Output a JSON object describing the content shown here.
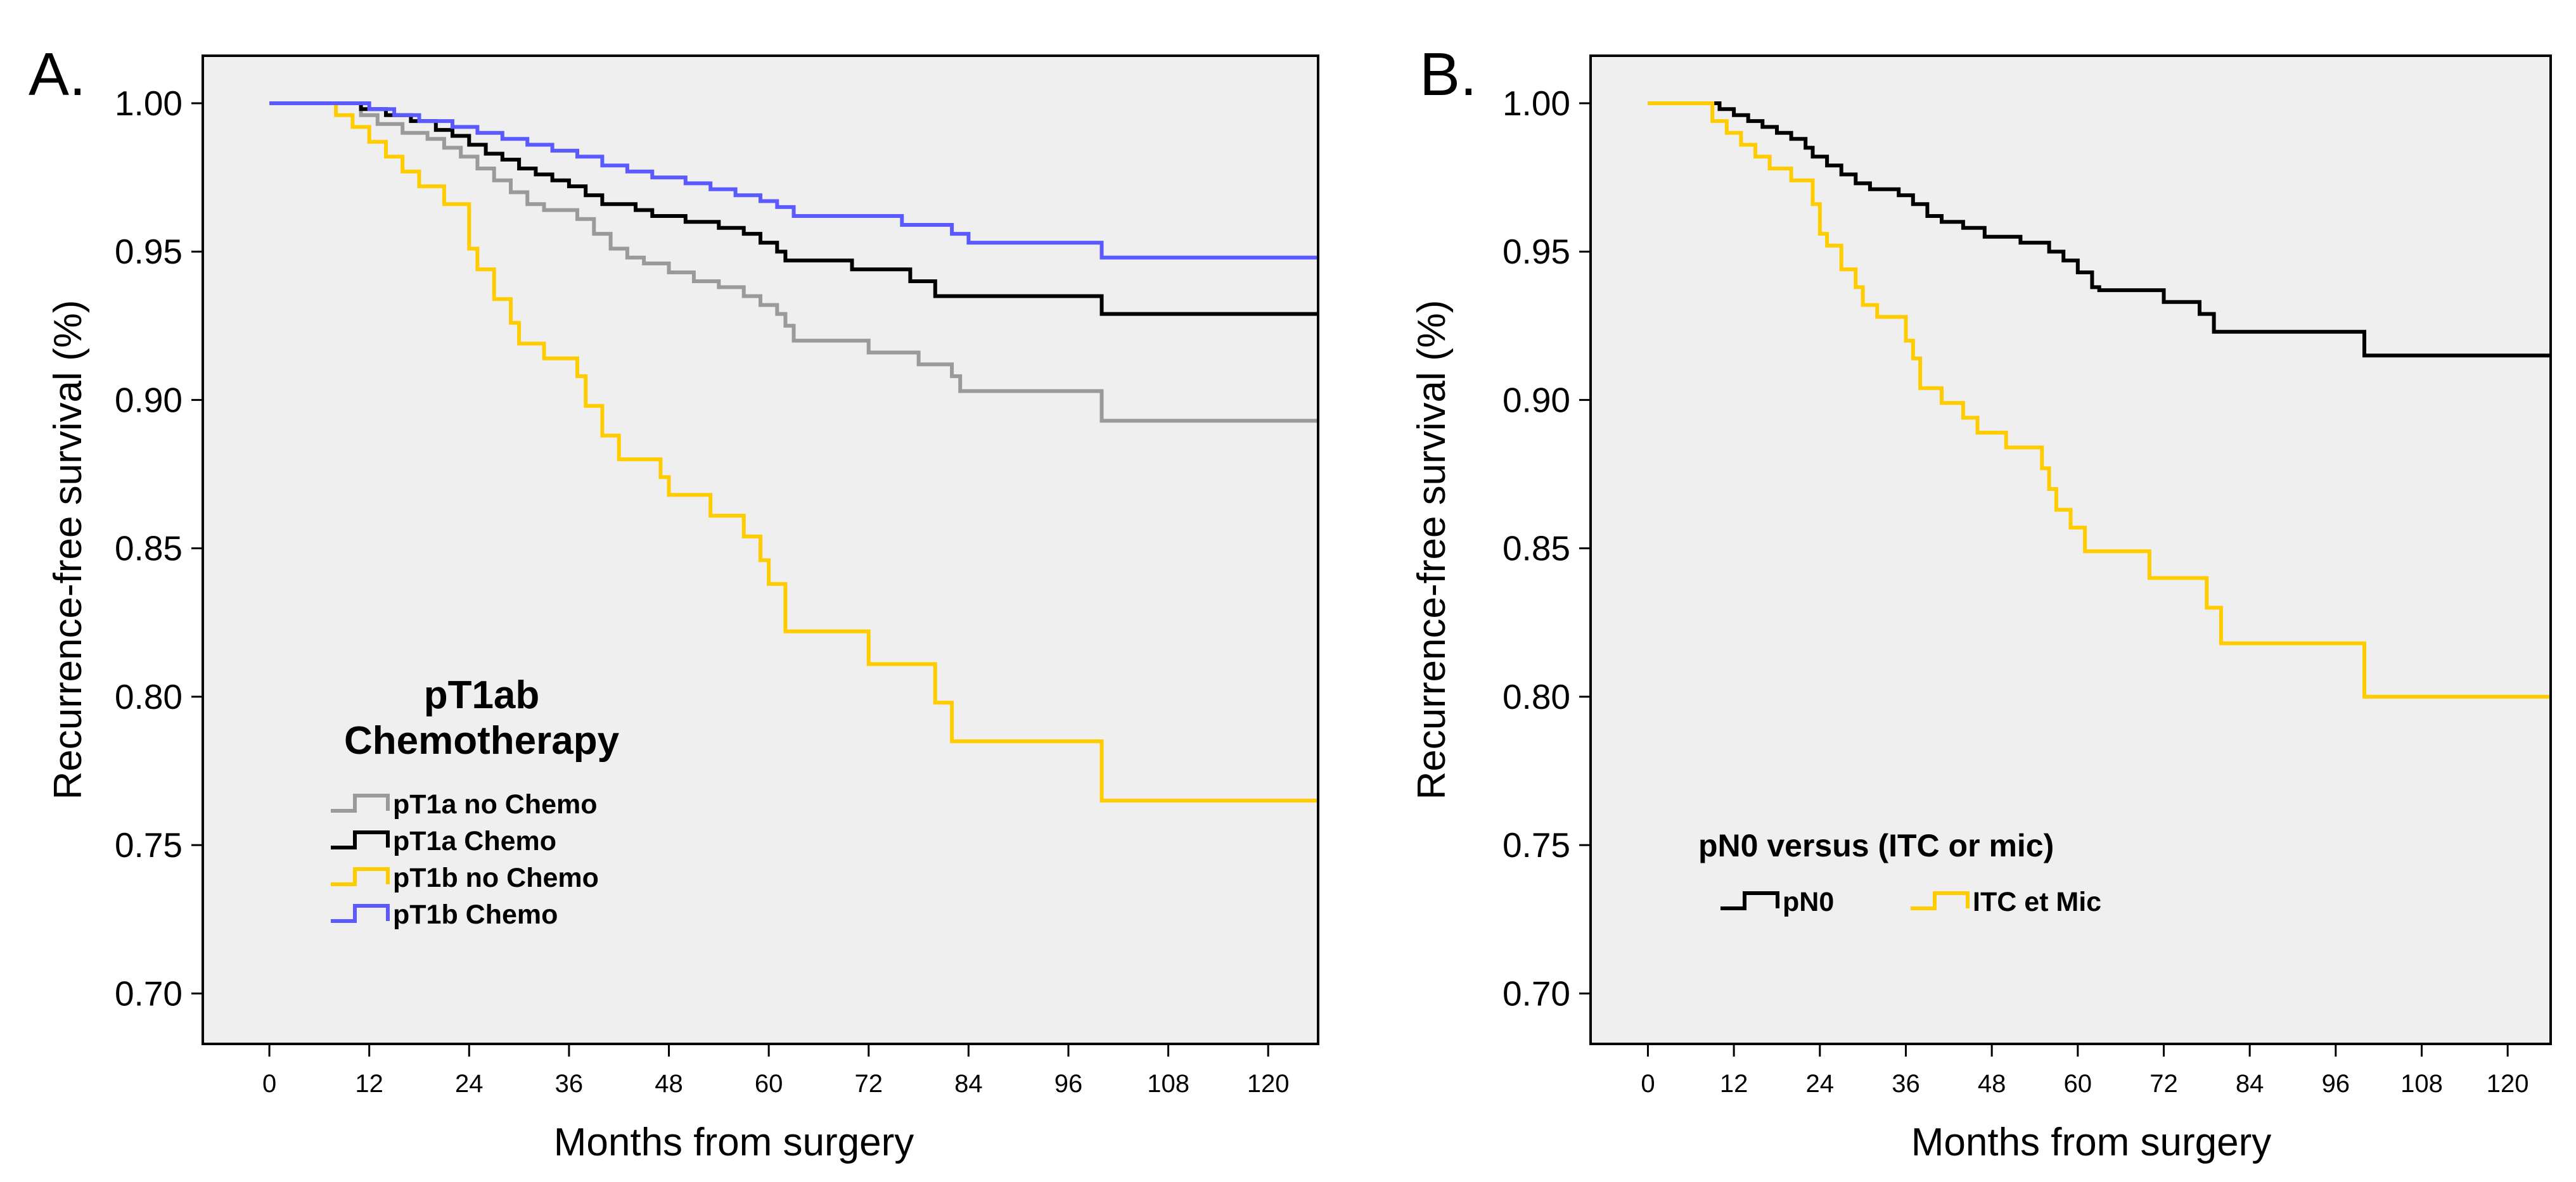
{
  "chart_data": [
    {
      "type": "line",
      "step": true,
      "panel_label": "A.",
      "xlabel": "Months from surgery",
      "ylabel": "Recurrence-free survival (%)",
      "xlim": [
        -8,
        126
      ],
      "ylim": [
        0.683,
        1.016
      ],
      "x_ticks": [
        0,
        12,
        24,
        36,
        48,
        60,
        72,
        84,
        96,
        108,
        120
      ],
      "x_tick_labels": [
        "0",
        "12",
        "24",
        "36",
        "48",
        "60",
        "72",
        "84",
        "96",
        "108",
        "120"
      ],
      "y_ticks": [
        1.0,
        0.95,
        0.9,
        0.85,
        0.8,
        0.75,
        0.7
      ],
      "y_tick_labels": [
        "1.00",
        "0.95",
        "0.90",
        "0.85",
        "0.80",
        "0.75",
        "0.70"
      ],
      "grid": false,
      "background": "#efefef",
      "legend": {
        "title_lines": [
          "pT1ab",
          "Chemotherapy"
        ],
        "placement": "lower-left",
        "entries": [
          "pT1a no Chemo",
          "pT1a Chemo",
          "pT1b no Chemo",
          "pT1b Chemo"
        ]
      },
      "series": [
        {
          "name": "pT1a no Chemo",
          "color": "#9a9a9a",
          "points": [
            [
              0,
              1.0
            ],
            [
              8,
              1.0
            ],
            [
              11,
              0.996
            ],
            [
              13,
              0.993
            ],
            [
              16,
              0.99
            ],
            [
              19,
              0.988
            ],
            [
              21,
              0.985
            ],
            [
              23,
              0.982
            ],
            [
              25,
              0.978
            ],
            [
              27,
              0.974
            ],
            [
              29,
              0.97
            ],
            [
              31,
              0.966
            ],
            [
              33,
              0.964
            ],
            [
              37,
              0.961
            ],
            [
              39,
              0.956
            ],
            [
              41,
              0.951
            ],
            [
              43,
              0.948
            ],
            [
              45,
              0.946
            ],
            [
              48,
              0.943
            ],
            [
              51,
              0.94
            ],
            [
              54,
              0.938
            ],
            [
              57,
              0.935
            ],
            [
              59,
              0.932
            ],
            [
              61,
              0.929
            ],
            [
              62,
              0.925
            ],
            [
              63,
              0.92
            ],
            [
              68,
              0.92
            ],
            [
              72,
              0.916
            ],
            [
              78,
              0.912
            ],
            [
              82,
              0.908
            ],
            [
              83,
              0.903
            ],
            [
              91,
              0.903
            ],
            [
              100,
              0.903
            ],
            [
              100,
              0.893
            ],
            [
              126,
              0.893
            ]
          ]
        },
        {
          "name": "pT1a Chemo",
          "color": "#000000",
          "points": [
            [
              0,
              1.0
            ],
            [
              8,
              1.0
            ],
            [
              11,
              0.998
            ],
            [
              14,
              0.996
            ],
            [
              17,
              0.994
            ],
            [
              20,
              0.991
            ],
            [
              22,
              0.989
            ],
            [
              24,
              0.986
            ],
            [
              26,
              0.983
            ],
            [
              28,
              0.981
            ],
            [
              30,
              0.978
            ],
            [
              32,
              0.976
            ],
            [
              34,
              0.974
            ],
            [
              36,
              0.972
            ],
            [
              38,
              0.969
            ],
            [
              40,
              0.966
            ],
            [
              44,
              0.964
            ],
            [
              46,
              0.962
            ],
            [
              50,
              0.96
            ],
            [
              54,
              0.958
            ],
            [
              57,
              0.956
            ],
            [
              59,
              0.953
            ],
            [
              61,
              0.95
            ],
            [
              62,
              0.947
            ],
            [
              66,
              0.947
            ],
            [
              70,
              0.944
            ],
            [
              77,
              0.94
            ],
            [
              80,
              0.935
            ],
            [
              90,
              0.935
            ],
            [
              100,
              0.935
            ],
            [
              100,
              0.929
            ],
            [
              126,
              0.929
            ]
          ]
        },
        {
          "name": "pT1b no Chemo",
          "color": "#ffcc00",
          "points": [
            [
              0,
              1.0
            ],
            [
              8,
              0.996
            ],
            [
              10,
              0.992
            ],
            [
              12,
              0.987
            ],
            [
              14,
              0.982
            ],
            [
              16,
              0.977
            ],
            [
              18,
              0.972
            ],
            [
              21,
              0.966
            ],
            [
              24,
              0.951
            ],
            [
              25,
              0.944
            ],
            [
              27,
              0.934
            ],
            [
              29,
              0.926
            ],
            [
              30,
              0.919
            ],
            [
              33,
              0.914
            ],
            [
              37,
              0.908
            ],
            [
              38,
              0.898
            ],
            [
              40,
              0.888
            ],
            [
              42,
              0.88
            ],
            [
              47,
              0.874
            ],
            [
              48,
              0.868
            ],
            [
              53,
              0.861
            ],
            [
              57,
              0.854
            ],
            [
              59,
              0.846
            ],
            [
              60,
              0.838
            ],
            [
              62,
              0.822
            ],
            [
              72,
              0.822
            ],
            [
              72,
              0.811
            ],
            [
              78,
              0.811
            ],
            [
              80,
              0.798
            ],
            [
              82,
              0.785
            ],
            [
              100,
              0.785
            ],
            [
              100,
              0.765
            ],
            [
              126,
              0.765
            ]
          ]
        },
        {
          "name": "pT1b Chemo",
          "color": "#5a5aff",
          "points": [
            [
              0,
              1.0
            ],
            [
              8,
              1.0
            ],
            [
              12,
              0.998
            ],
            [
              15,
              0.996
            ],
            [
              18,
              0.994
            ],
            [
              22,
              0.992
            ],
            [
              25,
              0.99
            ],
            [
              28,
              0.988
            ],
            [
              31,
              0.986
            ],
            [
              34,
              0.984
            ],
            [
              37,
              0.982
            ],
            [
              40,
              0.979
            ],
            [
              43,
              0.977
            ],
            [
              46,
              0.975
            ],
            [
              50,
              0.973
            ],
            [
              53,
              0.971
            ],
            [
              56,
              0.969
            ],
            [
              59,
              0.967
            ],
            [
              61,
              0.965
            ],
            [
              63,
              0.962
            ],
            [
              72,
              0.962
            ],
            [
              76,
              0.959
            ],
            [
              82,
              0.956
            ],
            [
              84,
              0.953
            ],
            [
              100,
              0.953
            ],
            [
              100,
              0.948
            ],
            [
              126,
              0.948
            ]
          ]
        }
      ]
    },
    {
      "type": "line",
      "step": true,
      "panel_label": "B.",
      "xlabel": "Months from surgery",
      "ylabel": "Recurrence-free survival (%)",
      "xlim": [
        -8,
        126
      ],
      "ylim": [
        0.683,
        1.016
      ],
      "x_ticks": [
        0,
        12,
        24,
        36,
        48,
        60,
        72,
        84,
        96,
        108,
        120
      ],
      "x_tick_labels": [
        "0",
        "12",
        "24",
        "36",
        "48",
        "60",
        "72",
        "84",
        "96",
        "108",
        "120"
      ],
      "y_ticks": [
        1.0,
        0.95,
        0.9,
        0.85,
        0.8,
        0.75,
        0.7
      ],
      "y_tick_labels": [
        "1.00",
        "0.95",
        "0.90",
        "0.85",
        "0.80",
        "0.75",
        "0.70"
      ],
      "grid": false,
      "background": "#efefef",
      "legend": {
        "title_lines": [
          "pN0 versus (ITC or mic)"
        ],
        "placement": "lower-left",
        "entries": [
          "pN0",
          "ITC et Mic"
        ]
      },
      "series": [
        {
          "name": "pN0",
          "color": "#000000",
          "points": [
            [
              0,
              1.0
            ],
            [
              8,
              1.0
            ],
            [
              10,
              0.998
            ],
            [
              12,
              0.996
            ],
            [
              14,
              0.994
            ],
            [
              16,
              0.992
            ],
            [
              18,
              0.99
            ],
            [
              20,
              0.988
            ],
            [
              22,
              0.985
            ],
            [
              23,
              0.982
            ],
            [
              25,
              0.979
            ],
            [
              27,
              0.976
            ],
            [
              29,
              0.973
            ],
            [
              31,
              0.971
            ],
            [
              35,
              0.969
            ],
            [
              37,
              0.966
            ],
            [
              39,
              0.962
            ],
            [
              41,
              0.96
            ],
            [
              44,
              0.958
            ],
            [
              47,
              0.955
            ],
            [
              52,
              0.953
            ],
            [
              56,
              0.95
            ],
            [
              58,
              0.947
            ],
            [
              60,
              0.943
            ],
            [
              62,
              0.938
            ],
            [
              63,
              0.937
            ],
            [
              72,
              0.933
            ],
            [
              77,
              0.929
            ],
            [
              79,
              0.923
            ],
            [
              100,
              0.923
            ],
            [
              100,
              0.915
            ],
            [
              126,
              0.915
            ]
          ]
        },
        {
          "name": "ITC et Mic",
          "color": "#ffcc00",
          "points": [
            [
              0,
              1.0
            ],
            [
              8,
              1.0
            ],
            [
              9,
              0.994
            ],
            [
              11,
              0.99
            ],
            [
              13,
              0.986
            ],
            [
              15,
              0.982
            ],
            [
              17,
              0.978
            ],
            [
              20,
              0.974
            ],
            [
              23,
              0.966
            ],
            [
              24,
              0.956
            ],
            [
              25,
              0.952
            ],
            [
              27,
              0.944
            ],
            [
              29,
              0.938
            ],
            [
              30,
              0.932
            ],
            [
              32,
              0.928
            ],
            [
              36,
              0.92
            ],
            [
              37,
              0.914
            ],
            [
              38,
              0.904
            ],
            [
              41,
              0.899
            ],
            [
              44,
              0.894
            ],
            [
              46,
              0.889
            ],
            [
              50,
              0.884
            ],
            [
              55,
              0.877
            ],
            [
              56,
              0.87
            ],
            [
              57,
              0.863
            ],
            [
              59,
              0.857
            ],
            [
              61,
              0.849
            ],
            [
              70,
              0.849
            ],
            [
              70,
              0.84
            ],
            [
              78,
              0.83
            ],
            [
              80,
              0.818
            ],
            [
              100,
              0.818
            ],
            [
              100,
              0.8
            ],
            [
              126,
              0.8
            ]
          ]
        }
      ]
    }
  ]
}
